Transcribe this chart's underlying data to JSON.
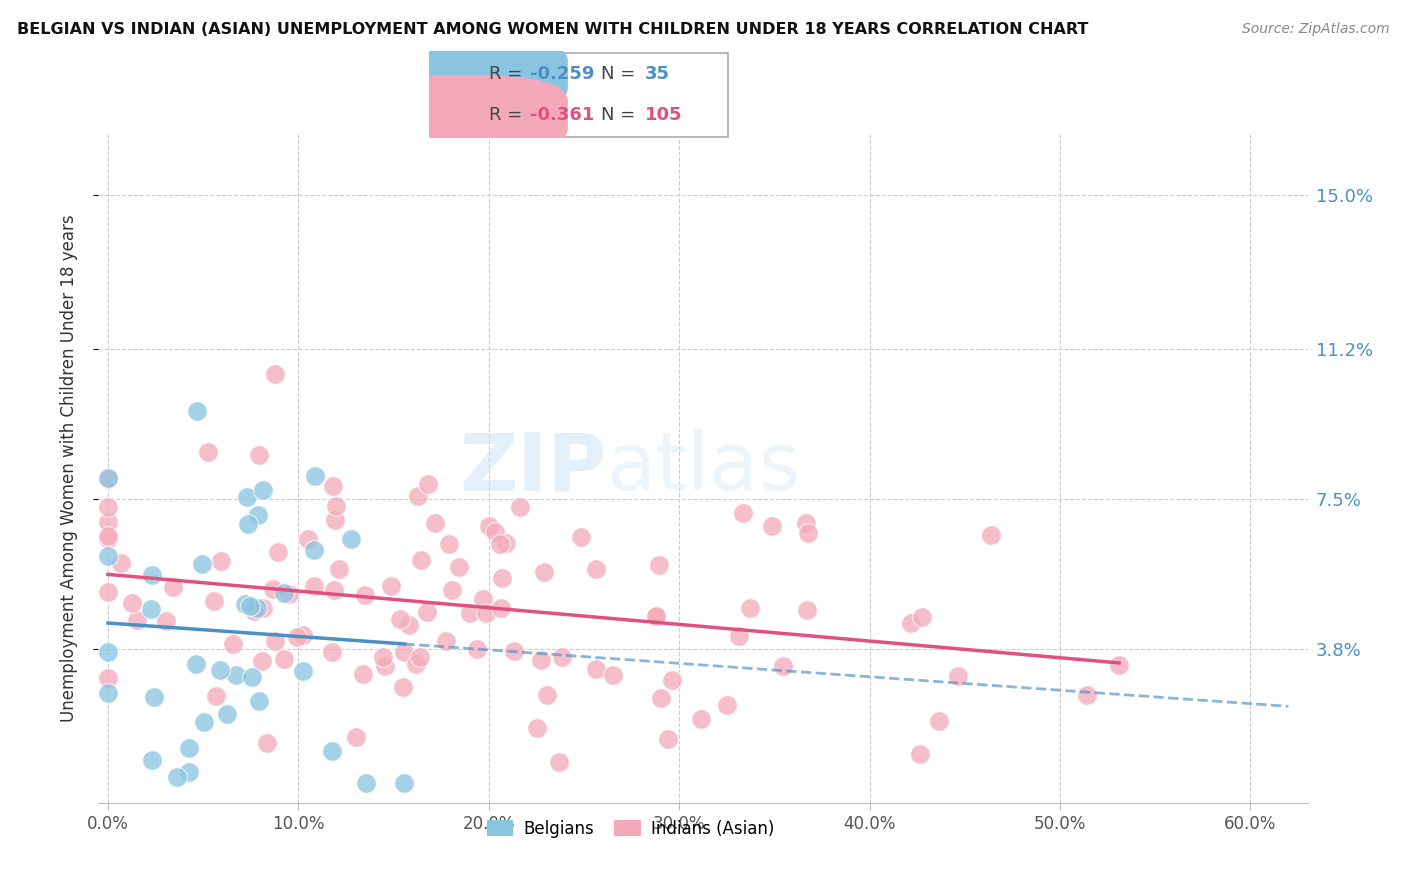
{
  "title": "BELGIAN VS INDIAN (ASIAN) UNEMPLOYMENT AMONG WOMEN WITH CHILDREN UNDER 18 YEARS CORRELATION CHART",
  "source": "Source: ZipAtlas.com",
  "ylabel": "Unemployment Among Women with Children Under 18 years",
  "ytick_labels": [
    "3.8%",
    "7.5%",
    "11.2%",
    "15.0%"
  ],
  "ytick_vals": [
    0.038,
    0.075,
    0.112,
    0.15
  ],
  "xtick_labels": [
    "0.0%",
    "10.0%",
    "20.0%",
    "30.0%",
    "40.0%",
    "50.0%",
    "60.0%"
  ],
  "xtick_vals": [
    0.0,
    0.1,
    0.2,
    0.3,
    0.4,
    0.5,
    0.6
  ],
  "xlim": [
    -0.005,
    0.63
  ],
  "ylim": [
    0.0,
    0.165
  ],
  "belgian_R": -0.259,
  "belgian_N": 35,
  "indian_R": -0.361,
  "indian_N": 105,
  "belgian_color": "#89c4e1",
  "indian_color": "#f4a9ba",
  "belgian_line_color": "#4a90c4",
  "indian_line_color": "#e05080",
  "watermark_zip": "ZIP",
  "watermark_atlas": "atlas",
  "watermark_color_zip": "#c5dff0",
  "watermark_color_atlas": "#c5dff0",
  "legend_belgian_color": "#89c4e1",
  "legend_indian_color": "#f4a9ba",
  "legend_r_color_belgian": "#4a90c4",
  "legend_n_color_belgian": "#4a90c4",
  "legend_r_color_indian": "#e05080",
  "legend_n_color_indian": "#e05080"
}
